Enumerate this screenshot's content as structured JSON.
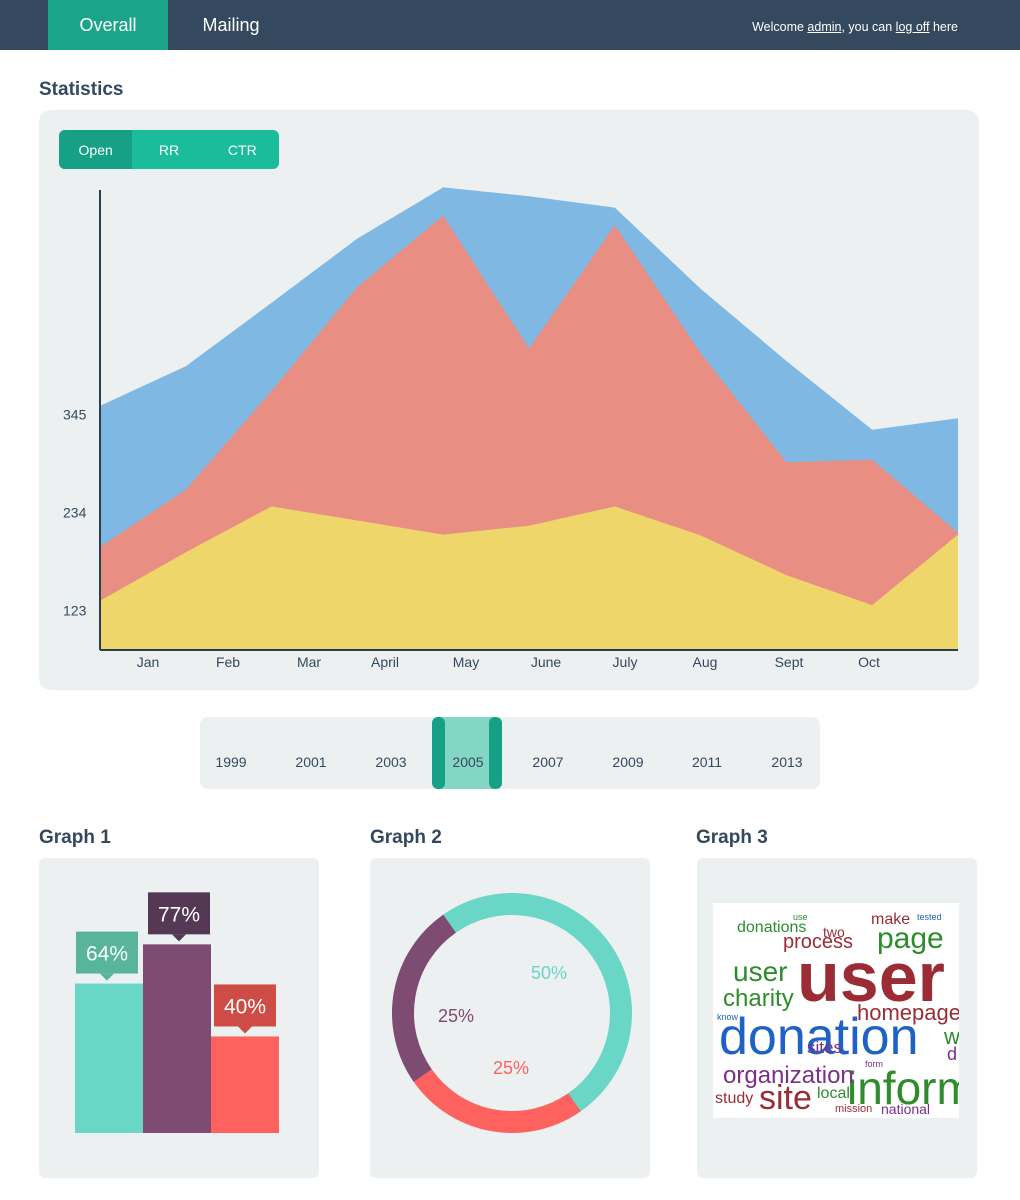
{
  "nav": {
    "tabs": [
      {
        "label": "Overall",
        "active": true
      },
      {
        "label": "Mailing",
        "active": false
      }
    ],
    "welcome_prefix": "Welcome ",
    "username": "admin",
    "welcome_middle": ", you can ",
    "logoff_label": "log off",
    "welcome_suffix": " here"
  },
  "statistics": {
    "title": "Statistics",
    "segments": [
      {
        "label": "Open",
        "active": true
      },
      {
        "label": "RR",
        "active": false
      },
      {
        "label": "CTR",
        "active": false
      }
    ]
  },
  "chart_data": {
    "type": "area",
    "title": "",
    "x_labels": [
      "Jan",
      "Feb",
      "Mar",
      "April",
      "May",
      "June",
      "July",
      "Aug",
      "Sept",
      "Oct"
    ],
    "y_ticks": [
      123,
      234,
      345
    ],
    "y_range": [
      78,
      600
    ],
    "x_positions": [
      0,
      1,
      2,
      3,
      4,
      5,
      6,
      7,
      8,
      9,
      10
    ],
    "series": [
      {
        "color": "#7fb9e3",
        "values": [
          355,
          400,
          472,
          545,
          603,
          593,
          580,
          488,
          406,
          328,
          341
        ]
      },
      {
        "color": "#e88e83",
        "values": [
          195,
          260,
          372,
          490,
          571,
          420,
          560,
          415,
          291,
          294,
          211
        ]
      },
      {
        "color": "#eed66a",
        "values": [
          134,
          189,
          241,
          225,
          209,
          219,
          241,
          208,
          163,
          129,
          209
        ]
      }
    ],
    "grid": false,
    "legend": "none"
  },
  "timeline": {
    "years": [
      "1999",
      "2001",
      "2003",
      "2005",
      "2007",
      "2009",
      "2011",
      "2013"
    ],
    "selected": "2005"
  },
  "graph1": {
    "title": "Graph 1",
    "bars": [
      {
        "label": "64%",
        "value": 64,
        "color": "#6ad6c5",
        "tag_color": "#58b59b"
      },
      {
        "label": "77%",
        "value": 77,
        "color": "#7e4b73",
        "tag_color": "#553854"
      },
      {
        "label": "40%",
        "value": 40,
        "color": "#fd625e",
        "tag_color": "#cf4b45"
      }
    ]
  },
  "graph2": {
    "title": "Graph 2",
    "slices": [
      {
        "label": "50%",
        "value": 50,
        "color": "#6ad6c5"
      },
      {
        "label": "25%",
        "value": 25,
        "color": "#fd625e"
      },
      {
        "label": "25%",
        "value": 25,
        "color": "#7e4b73"
      }
    ]
  },
  "graph3": {
    "title": "Graph 3",
    "words": [
      {
        "text": "user",
        "color": "#9b2c35"
      },
      {
        "text": "donation",
        "color": "#1e63c3"
      },
      {
        "text": "inform",
        "color": "#2d8c2b"
      },
      {
        "text": "site",
        "color": "#9b2c35"
      },
      {
        "text": "organization",
        "color": "#7a2f8a"
      },
      {
        "text": "page",
        "color": "#2d8c2b"
      },
      {
        "text": "homepage",
        "color": "#9b2c35"
      },
      {
        "text": "charity",
        "color": "#2d8c2b"
      },
      {
        "text": "process",
        "color": "#9b2c35"
      },
      {
        "text": "user",
        "color": "#2d8c2b"
      },
      {
        "text": "donations",
        "color": "#2d8c2b"
      },
      {
        "text": "make",
        "color": "#9b2c35"
      },
      {
        "text": "sites",
        "color": "#7a2f8a"
      },
      {
        "text": "local",
        "color": "#2d8c2b"
      },
      {
        "text": "study",
        "color": "#9b2c35"
      },
      {
        "text": "national",
        "color": "#7a2f8a"
      },
      {
        "text": "mission",
        "color": "#9b2c35"
      },
      {
        "text": "two",
        "color": "#9b2c35"
      },
      {
        "text": "tested",
        "color": "#1e63c3"
      },
      {
        "text": "form",
        "color": "#7a2f8a"
      },
      {
        "text": "know",
        "color": "#1e63c3"
      },
      {
        "text": "use",
        "color": "#2d8c2b"
      },
      {
        "text": "w",
        "color": "#2d8c2b"
      },
      {
        "text": "d",
        "color": "#7a2f8a"
      }
    ]
  }
}
